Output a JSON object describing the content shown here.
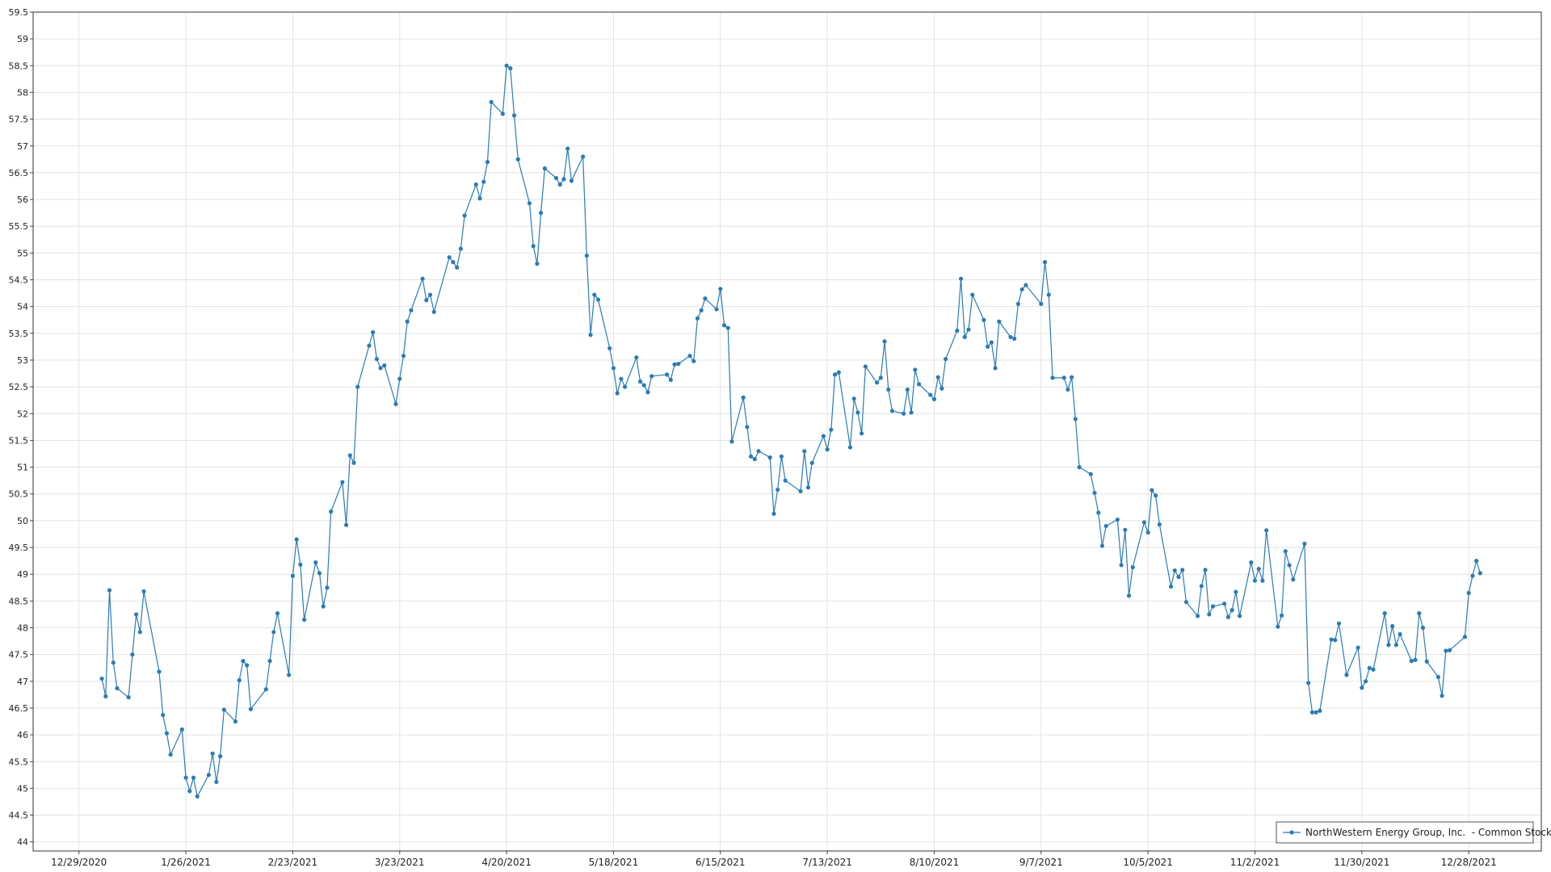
{
  "chart_data": {
    "type": "line",
    "x": [
      "1/4/2021",
      "1/5/2021",
      "1/6/2021",
      "1/7/2021",
      "1/8/2021",
      "1/11/2021",
      "1/12/2021",
      "1/13/2021",
      "1/14/2021",
      "1/15/2021",
      "1/19/2021",
      "1/20/2021",
      "1/21/2021",
      "1/22/2021",
      "1/25/2021",
      "1/26/2021",
      "1/27/2021",
      "1/28/2021",
      "1/29/2021",
      "2/1/2021",
      "2/2/2021",
      "2/3/2021",
      "2/4/2021",
      "2/5/2021",
      "2/8/2021",
      "2/9/2021",
      "2/10/2021",
      "2/11/2021",
      "2/12/2021",
      "2/16/2021",
      "2/17/2021",
      "2/18/2021",
      "2/19/2021",
      "2/22/2021",
      "2/23/2021",
      "2/24/2021",
      "2/25/2021",
      "2/26/2021",
      "3/1/2021",
      "3/2/2021",
      "3/3/2021",
      "3/4/2021",
      "3/5/2021",
      "3/8/2021",
      "3/9/2021",
      "3/10/2021",
      "3/11/2021",
      "3/12/2021",
      "3/15/2021",
      "3/16/2021",
      "3/17/2021",
      "3/18/2021",
      "3/19/2021",
      "3/22/2021",
      "3/23/2021",
      "3/24/2021",
      "3/25/2021",
      "3/26/2021",
      "3/29/2021",
      "3/30/2021",
      "3/31/2021",
      "4/1/2021",
      "4/5/2021",
      "4/6/2021",
      "4/7/2021",
      "4/8/2021",
      "4/9/2021",
      "4/12/2021",
      "4/13/2021",
      "4/14/2021",
      "4/15/2021",
      "4/16/2021",
      "4/19/2021",
      "4/20/2021",
      "4/21/2021",
      "4/22/2021",
      "4/23/2021",
      "4/26/2021",
      "4/27/2021",
      "4/28/2021",
      "4/29/2021",
      "4/30/2021",
      "5/3/2021",
      "5/4/2021",
      "5/5/2021",
      "5/6/2021",
      "5/7/2021",
      "5/10/2021",
      "5/11/2021",
      "5/12/2021",
      "5/13/2021",
      "5/14/2021",
      "5/17/2021",
      "5/18/2021",
      "5/19/2021",
      "5/20/2021",
      "5/21/2021",
      "5/24/2021",
      "5/25/2021",
      "5/26/2021",
      "5/27/2021",
      "5/28/2021",
      "6/1/2021",
      "6/2/2021",
      "6/3/2021",
      "6/4/2021",
      "6/7/2021",
      "6/8/2021",
      "6/9/2021",
      "6/10/2021",
      "6/11/2021",
      "6/14/2021",
      "6/15/2021",
      "6/16/2021",
      "6/17/2021",
      "6/18/2021",
      "6/21/2021",
      "6/22/2021",
      "6/23/2021",
      "6/24/2021",
      "6/25/2021",
      "6/28/2021",
      "6/29/2021",
      "6/30/2021",
      "7/1/2021",
      "7/2/2021",
      "7/6/2021",
      "7/7/2021",
      "7/8/2021",
      "7/9/2021",
      "7/12/2021",
      "7/13/2021",
      "7/14/2021",
      "7/15/2021",
      "7/16/2021",
      "7/19/2021",
      "7/20/2021",
      "7/21/2021",
      "7/22/2021",
      "7/23/2021",
      "7/26/2021",
      "7/27/2021",
      "7/28/2021",
      "7/29/2021",
      "7/30/2021",
      "8/2/2021",
      "8/3/2021",
      "8/4/2021",
      "8/5/2021",
      "8/6/2021",
      "8/9/2021",
      "8/10/2021",
      "8/11/2021",
      "8/12/2021",
      "8/13/2021",
      "8/16/2021",
      "8/17/2021",
      "8/18/2021",
      "8/19/2021",
      "8/20/2021",
      "8/23/2021",
      "8/24/2021",
      "8/25/2021",
      "8/26/2021",
      "8/27/2021",
      "8/30/2021",
      "8/31/2021",
      "9/1/2021",
      "9/2/2021",
      "9/3/2021",
      "9/7/2021",
      "9/8/2021",
      "9/9/2021",
      "9/10/2021",
      "9/13/2021",
      "9/14/2021",
      "9/15/2021",
      "9/16/2021",
      "9/17/2021",
      "9/20/2021",
      "9/21/2021",
      "9/22/2021",
      "9/23/2021",
      "9/24/2021",
      "9/27/2021",
      "9/28/2021",
      "9/29/2021",
      "9/30/2021",
      "10/1/2021",
      "10/4/2021",
      "10/5/2021",
      "10/6/2021",
      "10/7/2021",
      "10/8/2021",
      "10/11/2021",
      "10/12/2021",
      "10/13/2021",
      "10/14/2021",
      "10/15/2021",
      "10/18/2021",
      "10/19/2021",
      "10/20/2021",
      "10/21/2021",
      "10/22/2021",
      "10/25/2021",
      "10/26/2021",
      "10/27/2021",
      "10/28/2021",
      "10/29/2021",
      "11/1/2021",
      "11/2/2021",
      "11/3/2021",
      "11/4/2021",
      "11/5/2021",
      "11/8/2021",
      "11/9/2021",
      "11/10/2021",
      "11/11/2021",
      "11/12/2021",
      "11/15/2021",
      "11/16/2021",
      "11/17/2021",
      "11/18/2021",
      "11/19/2021",
      "11/22/2021",
      "11/23/2021",
      "11/24/2021",
      "11/26/2021",
      "11/29/2021",
      "11/30/2021",
      "12/1/2021",
      "12/2/2021",
      "12/3/2021",
      "12/6/2021",
      "12/7/2021",
      "12/8/2021",
      "12/9/2021",
      "12/10/2021",
      "12/13/2021",
      "12/14/2021",
      "12/15/2021",
      "12/16/2021",
      "12/17/2021",
      "12/20/2021",
      "12/21/2021",
      "12/22/2021",
      "12/23/2021",
      "12/27/2021",
      "12/28/2021",
      "12/29/2021",
      "12/30/2021",
      "12/31/2021"
    ],
    "series": [
      {
        "name": "NorthWestern Energy Group, Inc.  - Common Stock",
        "color": "#2b7bb5",
        "values": [
          47.05,
          46.72,
          48.7,
          47.35,
          46.87,
          46.7,
          47.5,
          48.25,
          47.92,
          48.68,
          47.18,
          46.37,
          46.03,
          45.63,
          46.1,
          45.2,
          44.95,
          45.2,
          44.85,
          45.25,
          45.65,
          45.12,
          45.6,
          46.47,
          46.25,
          47.02,
          47.38,
          47.3,
          46.48,
          46.85,
          47.38,
          47.92,
          48.27,
          47.12,
          48.97,
          49.65,
          49.18,
          48.15,
          49.22,
          49.02,
          48.4,
          48.75,
          50.17,
          50.72,
          49.92,
          51.22,
          51.08,
          52.5,
          53.27,
          53.52,
          53.02,
          52.85,
          52.9,
          52.18,
          52.65,
          53.08,
          53.72,
          53.93,
          54.52,
          54.12,
          54.22,
          53.9,
          54.92,
          54.83,
          54.73,
          55.08,
          55.7,
          56.28,
          56.02,
          56.33,
          56.7,
          57.82,
          57.6,
          58.5,
          58.45,
          57.57,
          56.75,
          55.93,
          55.13,
          54.8,
          55.75,
          56.58,
          56.4,
          56.28,
          56.38,
          56.95,
          56.35,
          56.8,
          54.95,
          53.47,
          54.22,
          54.13,
          53.22,
          52.85,
          52.38,
          52.65,
          52.5,
          53.05,
          52.6,
          52.53,
          52.4,
          52.7,
          52.73,
          52.63,
          52.92,
          52.93,
          53.08,
          52.98,
          53.78,
          53.93,
          54.15,
          53.95,
          54.33,
          53.65,
          53.6,
          51.48,
          52.3,
          51.75,
          51.2,
          51.15,
          51.3,
          51.18,
          50.13,
          50.58,
          51.2,
          50.75,
          50.55,
          51.3,
          50.62,
          51.08,
          51.58,
          51.33,
          51.7,
          52.73,
          52.77,
          51.37,
          52.28,
          52.02,
          51.63,
          52.88,
          52.58,
          52.67,
          53.35,
          52.45,
          52.05,
          52.0,
          52.45,
          52.02,
          52.82,
          52.55,
          52.35,
          52.27,
          52.68,
          52.47,
          53.02,
          53.55,
          54.52,
          53.43,
          53.57,
          54.22,
          53.75,
          53.25,
          53.33,
          52.85,
          53.72,
          53.43,
          53.4,
          54.05,
          54.32,
          54.4,
          54.05,
          54.83,
          54.22,
          52.67,
          52.67,
          52.45,
          52.68,
          51.9,
          51.0,
          50.87,
          50.52,
          50.15,
          49.53,
          49.9,
          50.02,
          49.17,
          49.83,
          48.6,
          49.13,
          49.97,
          49.78,
          50.57,
          50.47,
          49.93,
          48.77,
          49.07,
          48.95,
          49.08,
          48.48,
          48.22,
          48.78,
          49.08,
          48.25,
          48.4,
          48.45,
          48.2,
          48.33,
          48.67,
          48.22,
          49.22,
          48.88,
          49.1,
          48.88,
          49.82,
          48.02,
          48.23,
          49.43,
          49.17,
          48.9,
          49.57,
          46.97,
          46.42,
          46.42,
          46.45,
          47.78,
          47.77,
          48.08,
          47.12,
          47.63,
          46.88,
          47.0,
          47.25,
          47.22,
          48.27,
          47.68,
          48.03,
          47.68,
          47.88,
          47.38,
          47.4,
          48.27,
          48.0,
          47.37,
          47.08,
          46.73,
          47.57,
          47.58,
          47.83,
          48.65,
          48.97,
          49.25,
          49.02
        ]
      }
    ],
    "xlim": [
      "12/17/2020",
      "1/16/2022"
    ],
    "xticks": [
      "12/29/2020",
      "1/26/2021",
      "2/23/2021",
      "3/23/2021",
      "4/20/2021",
      "5/18/2021",
      "6/15/2021",
      "7/13/2021",
      "8/10/2021",
      "9/7/2021",
      "10/5/2021",
      "11/2/2021",
      "11/30/2021",
      "12/28/2021"
    ],
    "ylim": [
      43.83,
      59.5
    ],
    "yticks": [
      44,
      44.5,
      45,
      45.5,
      46,
      46.5,
      47,
      47.5,
      48,
      48.5,
      49,
      49.5,
      50,
      50.5,
      51,
      51.5,
      52,
      52.5,
      53,
      53.5,
      54,
      54.5,
      55,
      55.5,
      56,
      56.5,
      57,
      57.5,
      58,
      58.5,
      59,
      59.5
    ],
    "grid": true,
    "legend": "lower right"
  }
}
